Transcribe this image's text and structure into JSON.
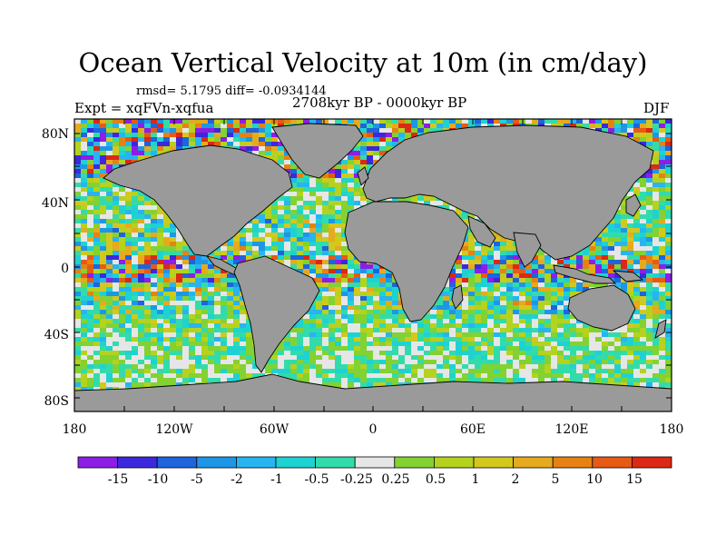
{
  "title": "Ocean Vertical Velocity at 10m (in cm/day)",
  "stats": "rmsd= 5.1795 diff= -0.0934144",
  "experiment": "Expt = xqFVn-xqfua",
  "period": "2708kyr BP - 0000kyr BP",
  "season": "DJF",
  "axes": {
    "lat_labels": [
      "80N",
      "40N",
      "0",
      "40S",
      "80S"
    ],
    "lon_labels": [
      "180",
      "120W",
      "60W",
      "0",
      "60E",
      "120E",
      "180"
    ]
  },
  "colorbar": {
    "labels": [
      "-15",
      "-10",
      "-5",
      "-2",
      "-1",
      "-0.5",
      "-0.25",
      "0.25",
      "0.5",
      "1",
      "2",
      "5",
      "10",
      "15"
    ],
    "colors": [
      "#8c1ee6",
      "#3c28dc",
      "#1e64dc",
      "#1e96e6",
      "#28b4f0",
      "#1ed2d2",
      "#32dcaa",
      "#e6e6e6",
      "#82d232",
      "#b4d21e",
      "#d2c81e",
      "#e6aa1e",
      "#e68214",
      "#e65a14",
      "#dc2814"
    ]
  },
  "map_colors": {
    "land": "#9a9a9a",
    "coast": "#000000",
    "ocean_neutral": "#e6e6e6"
  }
}
